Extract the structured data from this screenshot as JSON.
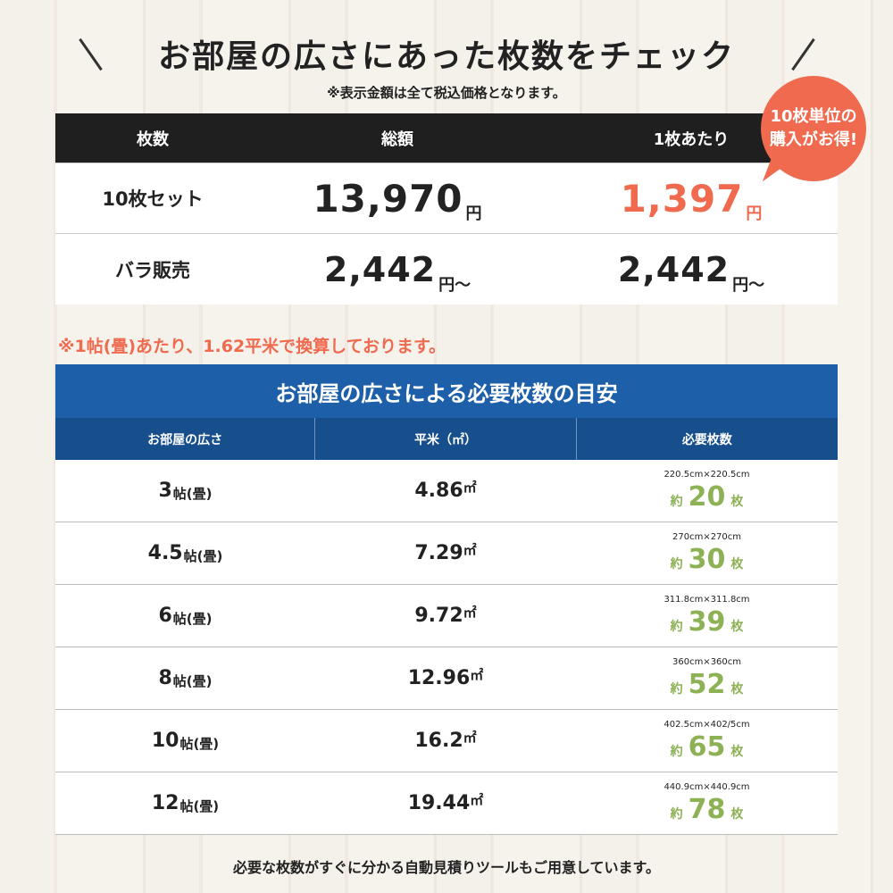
{
  "header": {
    "title": "お部屋の広さにあった枚数をチェック",
    "note": "※表示金額は全て税込価格となります。",
    "badge": [
      "10枚単位の",
      "購入がお得!"
    ]
  },
  "price_table": {
    "columns": [
      "枚数",
      "総額",
      "1枚あたり"
    ],
    "rows": [
      {
        "label": "10枚セット",
        "total": "13,970",
        "total_unit": "円",
        "per": "1,397",
        "per_unit": "円"
      },
      {
        "label": "バラ販売",
        "total": "2,442",
        "total_unit": "円〜",
        "per": "2,442",
        "per_unit": "円〜"
      }
    ]
  },
  "conversion_note": "※1帖(畳)あたり、1.62平米で換算しております。",
  "size_table": {
    "title": "お部屋の広さによる必要枚数の目安",
    "columns": [
      "お部屋の広さ",
      "平米（㎡）",
      "必要枚数"
    ],
    "rows": [
      {
        "size": "3",
        "size_unit": "帖(畳)",
        "area": "4.86",
        "area_unit": "㎡",
        "dimensions": "220.5cm×220.5cm",
        "approx": "約",
        "count": "20",
        "count_unit": "枚"
      },
      {
        "size": "4.5",
        "size_unit": "帖(畳)",
        "area": "7.29",
        "area_unit": "㎡",
        "dimensions": "270cm×270cm",
        "approx": "約",
        "count": "30",
        "count_unit": "枚"
      },
      {
        "size": "6",
        "size_unit": "帖(畳)",
        "area": "9.72",
        "area_unit": "㎡",
        "dimensions": "311.8cm×311.8cm",
        "approx": "約",
        "count": "39",
        "count_unit": "枚"
      },
      {
        "size": "8",
        "size_unit": "帖(畳)",
        "area": "12.96",
        "area_unit": "㎡",
        "dimensions": "360cm×360cm",
        "approx": "約",
        "count": "52",
        "count_unit": "枚"
      },
      {
        "size": "10",
        "size_unit": "帖(畳)",
        "area": "16.2",
        "area_unit": "㎡",
        "dimensions": "402.5cm×402/5cm",
        "approx": "約",
        "count": "65",
        "count_unit": "枚"
      },
      {
        "size": "12",
        "size_unit": "帖(畳)",
        "area": "19.44",
        "area_unit": "㎡",
        "dimensions": "440.9cm×440.9cm",
        "approx": "約",
        "count": "78",
        "count_unit": "枚"
      }
    ]
  },
  "footer": "必要な枚数がすぐに分かる自動見積りツールもご用意しています。"
}
